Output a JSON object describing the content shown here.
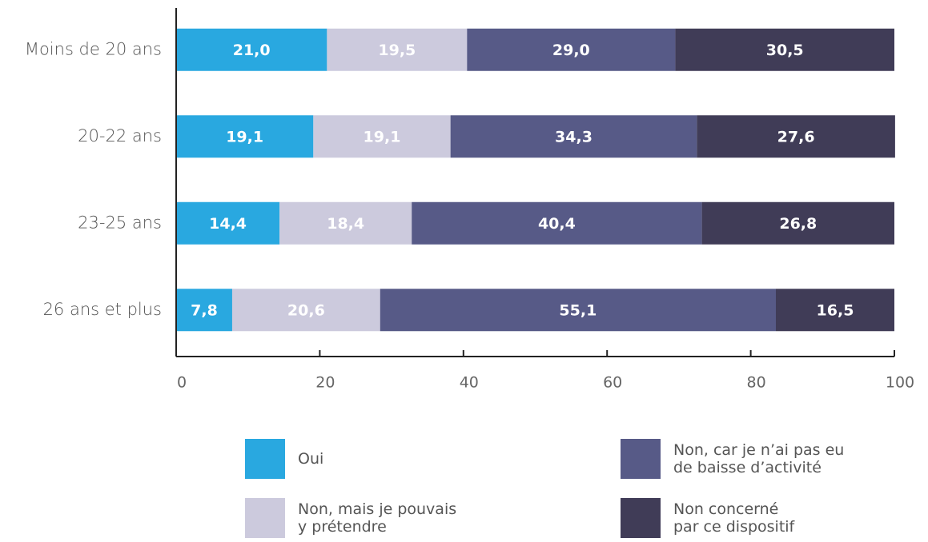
{
  "chart_data": {
    "type": "stacked-barh",
    "categories": [
      "Moins de 20 ans",
      "20-22 ans",
      "23-25 ans",
      "26 ans et plus"
    ],
    "series": [
      {
        "name": "Oui",
        "color": "#29a8e0",
        "values": [
          21.0,
          19.1,
          14.4,
          7.8
        ],
        "value_labels": [
          "21,0",
          "19,1",
          "14,4",
          "7,8"
        ]
      },
      {
        "name": "Non, mais je pouvais\ny prétendre",
        "color": "#cccadd",
        "values": [
          19.5,
          19.1,
          18.4,
          20.6
        ],
        "value_labels": [
          "19,5",
          "19,1",
          "18,4",
          "20,6"
        ]
      },
      {
        "name": "Non, car je n’ai pas eu\nde baisse d’activité",
        "color": "#575a87",
        "values": [
          29.0,
          34.3,
          40.4,
          55.1
        ],
        "value_labels": [
          "29,0",
          "34,3",
          "40,4",
          "55,1"
        ]
      },
      {
        "name": "Non concerné\npar ce dispositif",
        "color": "#403c57",
        "values": [
          30.5,
          27.6,
          26.8,
          16.5
        ],
        "value_labels": [
          "30,5",
          "27,6",
          "26,8",
          "16,5"
        ]
      }
    ],
    "xlim": [
      0,
      100
    ],
    "xticks": [
      0,
      20,
      40,
      60,
      80,
      100
    ]
  }
}
